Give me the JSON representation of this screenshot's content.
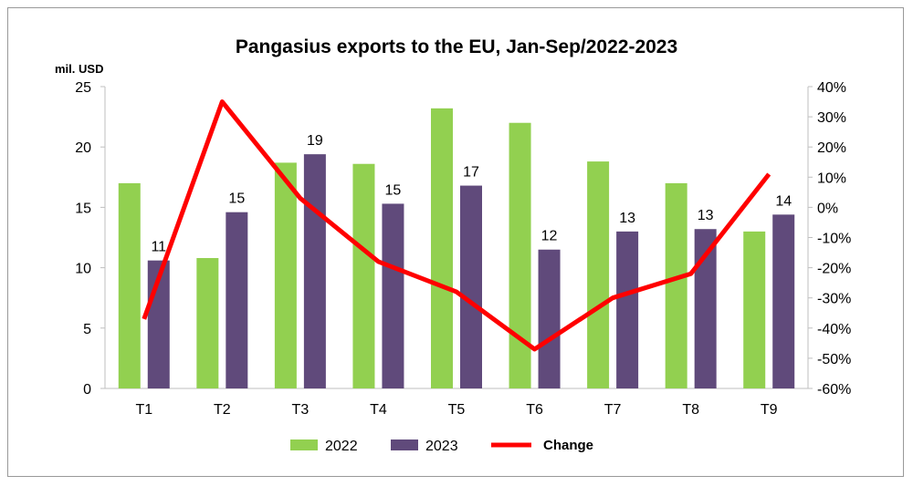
{
  "chart_data": {
    "type": "bar",
    "title": "Pangasius exports to the EU, Jan-Sep/2022-2023",
    "ylabel": "mil. USD",
    "categories": [
      "T1",
      "T2",
      "T3",
      "T4",
      "T5",
      "T6",
      "T7",
      "T8",
      "T9"
    ],
    "ylim": [
      0,
      25
    ],
    "y_ticks": [
      0,
      5,
      10,
      15,
      20,
      25
    ],
    "y2lim": [
      -60,
      40
    ],
    "y2_ticks": [
      "-60%",
      "-50%",
      "-40%",
      "-30%",
      "-20%",
      "-10%",
      "0%",
      "10%",
      "20%",
      "30%",
      "40%"
    ],
    "series": [
      {
        "name": "2022",
        "type": "bar",
        "color": "#92d050",
        "values": [
          17.0,
          10.8,
          18.7,
          18.6,
          23.2,
          22.0,
          18.8,
          17.0,
          13.0
        ]
      },
      {
        "name": "2023",
        "type": "bar",
        "color": "#604a7b",
        "values": [
          10.6,
          14.6,
          19.4,
          15.3,
          16.8,
          11.5,
          13.0,
          13.2,
          14.4
        ],
        "labels": [
          "11",
          "15",
          "19",
          "15",
          "17",
          "12",
          "13",
          "13",
          "14"
        ]
      },
      {
        "name": "Change",
        "type": "line",
        "axis": "right",
        "color": "#ff0000",
        "values": [
          -37,
          35,
          3,
          -18,
          -28,
          -47,
          -30,
          -22,
          11
        ]
      }
    ],
    "legend": "bottom",
    "grid": false
  }
}
